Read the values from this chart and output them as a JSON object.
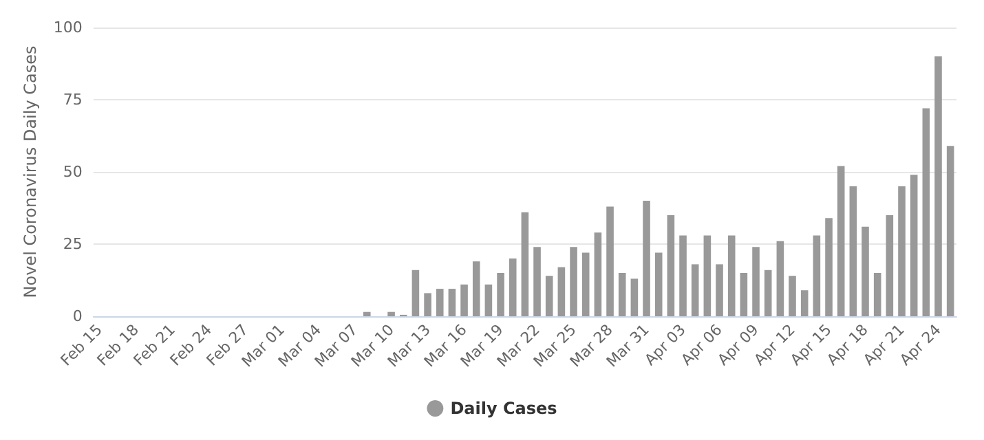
{
  "chart_data": {
    "type": "bar",
    "ylabel": "Novel Coronavirus Daily Cases",
    "categories": [
      "Feb 15",
      null,
      null,
      "Feb 18",
      null,
      null,
      "Feb 21",
      null,
      null,
      "Feb 24",
      null,
      null,
      "Feb 27",
      null,
      null,
      "Mar 01",
      null,
      null,
      "Mar 04",
      null,
      null,
      "Mar 07",
      null,
      null,
      "Mar 10",
      null,
      null,
      "Mar 13",
      null,
      null,
      "Mar 16",
      null,
      null,
      "Mar 19",
      null,
      null,
      "Mar 22",
      null,
      null,
      "Mar 25",
      null,
      null,
      "Mar 28",
      null,
      null,
      "Mar 31",
      null,
      null,
      "Apr 03",
      null,
      null,
      "Apr 06",
      null,
      null,
      "Apr 09",
      null,
      null,
      "Apr 12",
      null,
      null,
      "Apr 15",
      null,
      null,
      "Apr 18",
      null,
      null,
      "Apr 21",
      null,
      null,
      "Apr 24",
      null
    ],
    "series": [
      {
        "name": "Daily Cases",
        "color": "#999999",
        "values": [
          0,
          0,
          0,
          0,
          0,
          0,
          0,
          0,
          0,
          0,
          0,
          0,
          0,
          0,
          0,
          0,
          0,
          0,
          0,
          0,
          0,
          0,
          1.5,
          0,
          1.5,
          0.5,
          16,
          8,
          9.5,
          9.5,
          11,
          19,
          11,
          15,
          20,
          36,
          24,
          14,
          17,
          24,
          22,
          29,
          38,
          15,
          13,
          40,
          22,
          35,
          28,
          18,
          28,
          18,
          28,
          15,
          24,
          16,
          26,
          14,
          9,
          28,
          34,
          52,
          45,
          31,
          15,
          35,
          45,
          49,
          72,
          90,
          59
        ]
      }
    ],
    "ylim": [
      0,
      100
    ],
    "yticks": [
      0,
      25,
      50,
      75,
      100
    ],
    "grid": "y",
    "legend": "bottom"
  }
}
